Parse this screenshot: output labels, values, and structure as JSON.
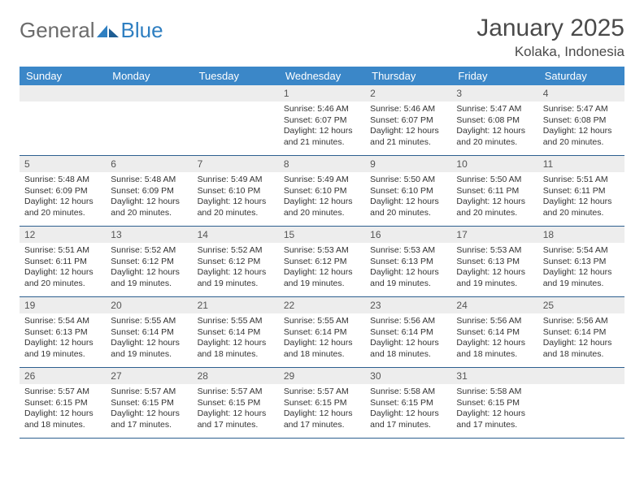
{
  "logo": {
    "text1": "General",
    "text2": "Blue"
  },
  "title": "January 2025",
  "location": "Kolaka, Indonesia",
  "colors": {
    "header_bg": "#3b87c8",
    "header_text": "#ffffff",
    "daynum_bg": "#ededed",
    "border": "#2d5f8f",
    "logo_gray": "#6b6b6b",
    "logo_blue": "#2f7fc1"
  },
  "weekdays": [
    "Sunday",
    "Monday",
    "Tuesday",
    "Wednesday",
    "Thursday",
    "Friday",
    "Saturday"
  ],
  "labels": {
    "sunrise": "Sunrise:",
    "sunset": "Sunset:",
    "daylight": "Daylight:"
  },
  "weeks": [
    [
      null,
      null,
      null,
      {
        "n": "1",
        "sr": "5:46 AM",
        "ss": "6:07 PM",
        "dl": "12 hours and 21 minutes."
      },
      {
        "n": "2",
        "sr": "5:46 AM",
        "ss": "6:07 PM",
        "dl": "12 hours and 21 minutes."
      },
      {
        "n": "3",
        "sr": "5:47 AM",
        "ss": "6:08 PM",
        "dl": "12 hours and 20 minutes."
      },
      {
        "n": "4",
        "sr": "5:47 AM",
        "ss": "6:08 PM",
        "dl": "12 hours and 20 minutes."
      }
    ],
    [
      {
        "n": "5",
        "sr": "5:48 AM",
        "ss": "6:09 PM",
        "dl": "12 hours and 20 minutes."
      },
      {
        "n": "6",
        "sr": "5:48 AM",
        "ss": "6:09 PM",
        "dl": "12 hours and 20 minutes."
      },
      {
        "n": "7",
        "sr": "5:49 AM",
        "ss": "6:10 PM",
        "dl": "12 hours and 20 minutes."
      },
      {
        "n": "8",
        "sr": "5:49 AM",
        "ss": "6:10 PM",
        "dl": "12 hours and 20 minutes."
      },
      {
        "n": "9",
        "sr": "5:50 AM",
        "ss": "6:10 PM",
        "dl": "12 hours and 20 minutes."
      },
      {
        "n": "10",
        "sr": "5:50 AM",
        "ss": "6:11 PM",
        "dl": "12 hours and 20 minutes."
      },
      {
        "n": "11",
        "sr": "5:51 AM",
        "ss": "6:11 PM",
        "dl": "12 hours and 20 minutes."
      }
    ],
    [
      {
        "n": "12",
        "sr": "5:51 AM",
        "ss": "6:11 PM",
        "dl": "12 hours and 20 minutes."
      },
      {
        "n": "13",
        "sr": "5:52 AM",
        "ss": "6:12 PM",
        "dl": "12 hours and 19 minutes."
      },
      {
        "n": "14",
        "sr": "5:52 AM",
        "ss": "6:12 PM",
        "dl": "12 hours and 19 minutes."
      },
      {
        "n": "15",
        "sr": "5:53 AM",
        "ss": "6:12 PM",
        "dl": "12 hours and 19 minutes."
      },
      {
        "n": "16",
        "sr": "5:53 AM",
        "ss": "6:13 PM",
        "dl": "12 hours and 19 minutes."
      },
      {
        "n": "17",
        "sr": "5:53 AM",
        "ss": "6:13 PM",
        "dl": "12 hours and 19 minutes."
      },
      {
        "n": "18",
        "sr": "5:54 AM",
        "ss": "6:13 PM",
        "dl": "12 hours and 19 minutes."
      }
    ],
    [
      {
        "n": "19",
        "sr": "5:54 AM",
        "ss": "6:13 PM",
        "dl": "12 hours and 19 minutes."
      },
      {
        "n": "20",
        "sr": "5:55 AM",
        "ss": "6:14 PM",
        "dl": "12 hours and 19 minutes."
      },
      {
        "n": "21",
        "sr": "5:55 AM",
        "ss": "6:14 PM",
        "dl": "12 hours and 18 minutes."
      },
      {
        "n": "22",
        "sr": "5:55 AM",
        "ss": "6:14 PM",
        "dl": "12 hours and 18 minutes."
      },
      {
        "n": "23",
        "sr": "5:56 AM",
        "ss": "6:14 PM",
        "dl": "12 hours and 18 minutes."
      },
      {
        "n": "24",
        "sr": "5:56 AM",
        "ss": "6:14 PM",
        "dl": "12 hours and 18 minutes."
      },
      {
        "n": "25",
        "sr": "5:56 AM",
        "ss": "6:14 PM",
        "dl": "12 hours and 18 minutes."
      }
    ],
    [
      {
        "n": "26",
        "sr": "5:57 AM",
        "ss": "6:15 PM",
        "dl": "12 hours and 18 minutes."
      },
      {
        "n": "27",
        "sr": "5:57 AM",
        "ss": "6:15 PM",
        "dl": "12 hours and 17 minutes."
      },
      {
        "n": "28",
        "sr": "5:57 AM",
        "ss": "6:15 PM",
        "dl": "12 hours and 17 minutes."
      },
      {
        "n": "29",
        "sr": "5:57 AM",
        "ss": "6:15 PM",
        "dl": "12 hours and 17 minutes."
      },
      {
        "n": "30",
        "sr": "5:58 AM",
        "ss": "6:15 PM",
        "dl": "12 hours and 17 minutes."
      },
      {
        "n": "31",
        "sr": "5:58 AM",
        "ss": "6:15 PM",
        "dl": "12 hours and 17 minutes."
      },
      null
    ]
  ]
}
